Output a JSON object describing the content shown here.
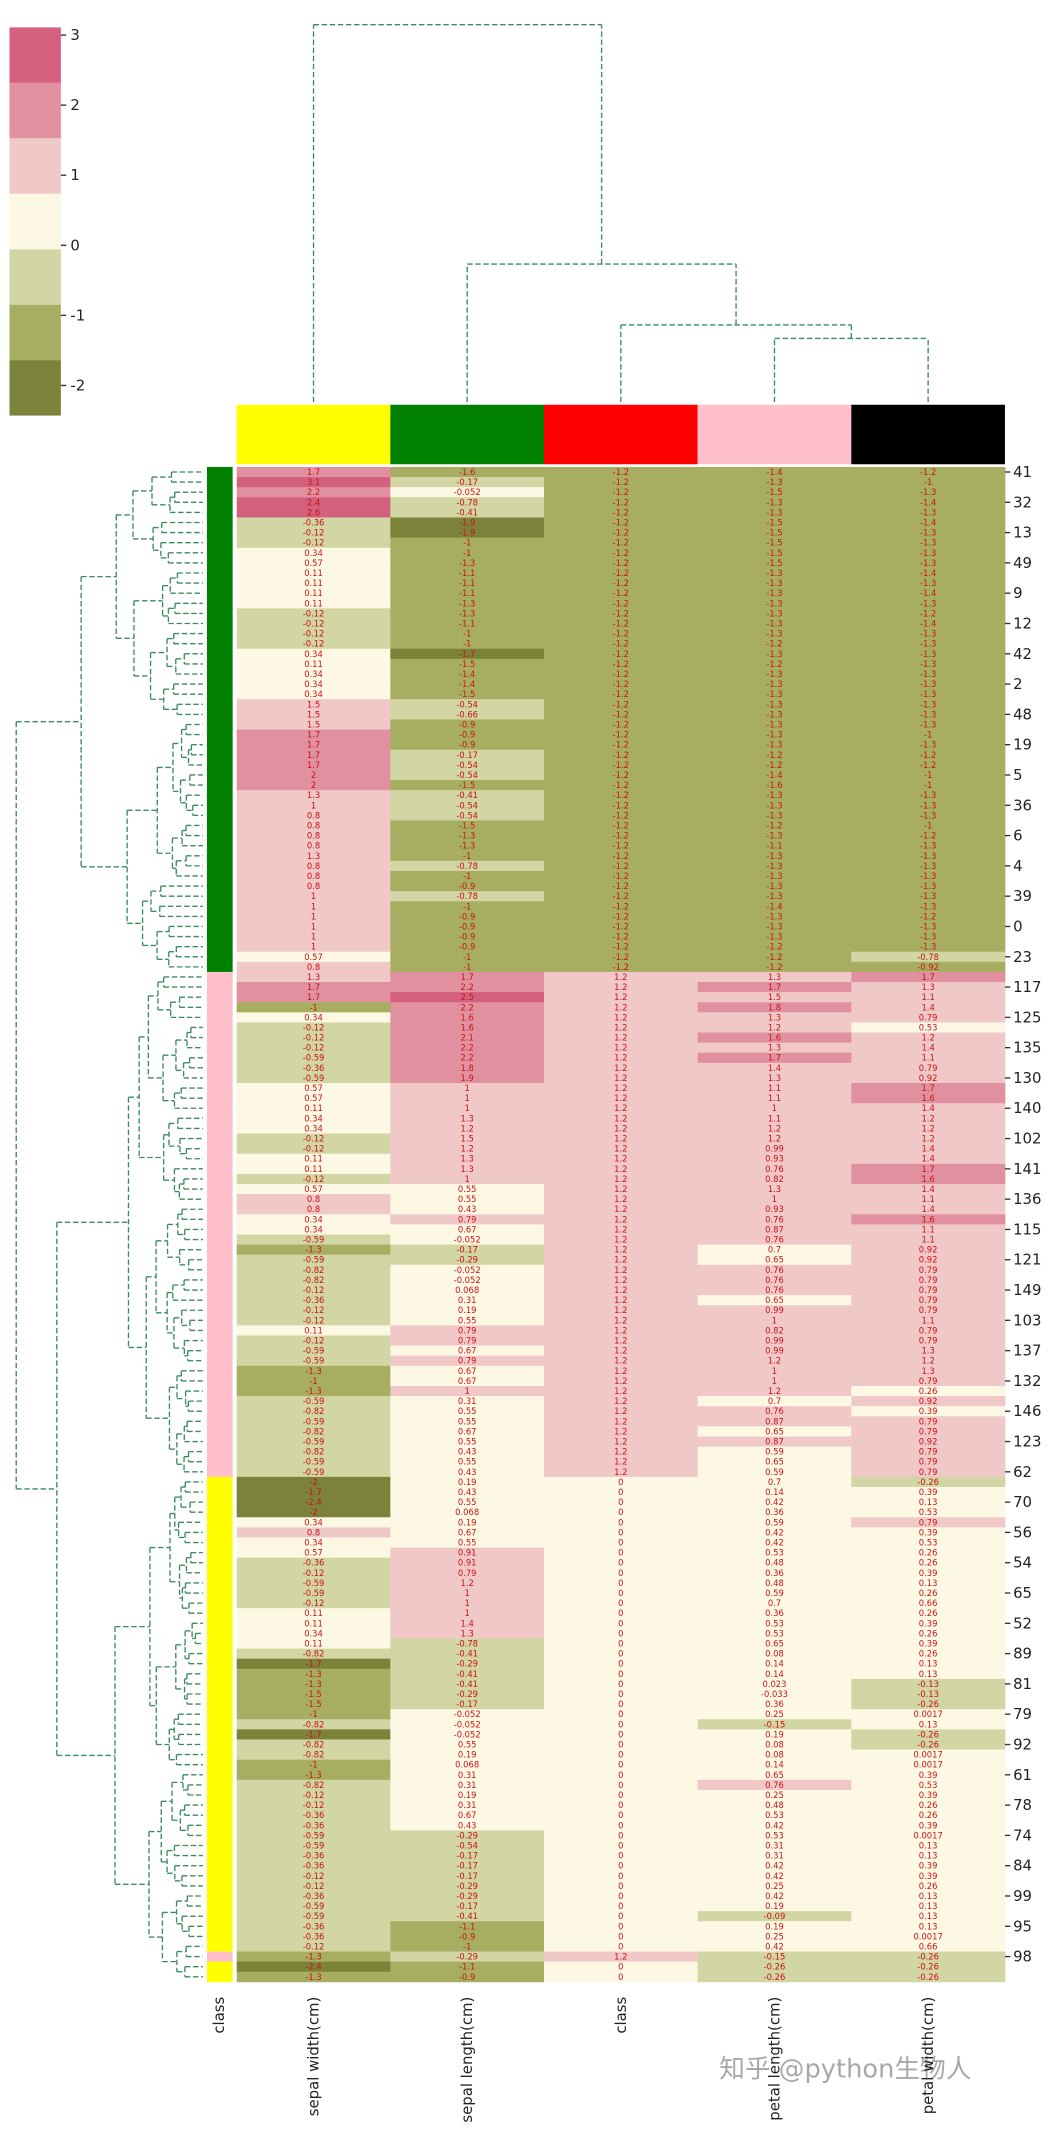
{
  "chart_data": {
    "type": "clustermap",
    "clim": [
      -2.43,
      3.11
    ],
    "colors": [
      "#7c823a",
      "#a7ae62",
      "#d1d6a4",
      "#fdf8e4",
      "#f0c8c8",
      "#e0909f",
      "#d4607f"
    ],
    "colorbar_ticks": [
      -2,
      -1,
      0,
      1,
      2,
      3
    ],
    "row_colors_label": "class",
    "row_colors": [
      {
        "value": -1.2,
        "color": "#008000"
      },
      {
        "value": 1.2,
        "color": "#ffc0cb"
      },
      {
        "value": 0,
        "color": "#ffff00"
      }
    ],
    "watermark": "知乎 @python生物人",
    "row_labels": [
      "41",
      null,
      null,
      "32",
      null,
      null,
      "13",
      null,
      null,
      "49",
      null,
      null,
      "9",
      null,
      null,
      "12",
      null,
      null,
      "42",
      null,
      null,
      "2",
      null,
      null,
      "48",
      null,
      null,
      "19",
      null,
      null,
      "5",
      null,
      null,
      "36",
      null,
      null,
      "6",
      null,
      null,
      "4",
      null,
      null,
      "39",
      null,
      null,
      "0",
      null,
      null,
      "23",
      null,
      null,
      "117",
      null,
      null,
      "125",
      null,
      null,
      "135",
      null,
      null,
      "130",
      null,
      null,
      "140",
      null,
      null,
      "102",
      null,
      null,
      "141",
      null,
      null,
      "136",
      null,
      null,
      "115",
      null,
      null,
      "121",
      null,
      null,
      "149",
      null,
      null,
      "103",
      null,
      null,
      "137",
      null,
      null,
      "132",
      null,
      null,
      "146",
      null,
      null,
      "123",
      null,
      null,
      "62",
      null,
      null,
      "70",
      null,
      null,
      "56",
      null,
      null,
      "54",
      null,
      null,
      "65",
      null,
      null,
      "52",
      null,
      null,
      "89",
      null,
      null,
      "81",
      null,
      null,
      "79",
      null,
      null,
      "92",
      null,
      null,
      "61",
      null,
      null,
      "78",
      null,
      null,
      "74",
      null,
      null,
      "84",
      null,
      null,
      "99",
      null,
      null,
      "95",
      null,
      null,
      "98",
      null,
      null
    ],
    "series": [
      {
        "name": "sepal width(cm)",
        "color": "#ffff00",
        "values": [
          1.7,
          3.1,
          2.2,
          2.4,
          2.6,
          -0.36,
          -0.12,
          -0.12,
          0.34,
          0.57,
          0.11,
          0.11,
          0.11,
          0.11,
          -0.12,
          -0.12,
          -0.12,
          -0.12,
          0.34,
          0.11,
          0.34,
          0.34,
          0.34,
          1.5,
          1.5,
          1.5,
          1.7,
          1.7,
          1.7,
          1.7,
          2,
          2,
          1.3,
          1,
          0.8,
          0.8,
          0.8,
          0.8,
          1.3,
          0.8,
          0.8,
          0.8,
          1,
          1,
          1,
          1,
          1,
          1,
          0.57,
          0.8,
          1.3,
          1.7,
          1.7,
          -1,
          0.34,
          -0.12,
          -0.12,
          -0.12,
          -0.59,
          -0.36,
          -0.59,
          0.57,
          0.57,
          0.11,
          0.34,
          0.34,
          -0.12,
          -0.12,
          0.11,
          0.11,
          -0.12,
          0.57,
          0.8,
          0.8,
          0.34,
          0.34,
          -0.59,
          -1.3,
          -0.59,
          -0.82,
          -0.82,
          -0.12,
          -0.36,
          -0.12,
          -0.12,
          0.11,
          -0.12,
          -0.59,
          -0.59,
          -1.3,
          -1,
          -1.3,
          -0.59,
          -0.82,
          -0.59,
          -0.82,
          -0.59,
          -0.82,
          -0.59,
          -0.59,
          -2,
          -1.7,
          -2.4,
          -2,
          0.34,
          0.8,
          0.34,
          0.57,
          -0.36,
          -0.12,
          -0.59,
          -0.59,
          -0.12,
          0.11,
          0.11,
          0.34,
          0.11,
          -0.82,
          -1.7,
          -1.3,
          -1.3,
          -1.5,
          -1.5,
          -1,
          -0.82,
          -1.7,
          -0.82,
          -0.82,
          -1,
          -1.3,
          -0.82,
          -0.12,
          -0.12,
          -0.36,
          -0.36,
          -0.59,
          -0.59,
          -0.36,
          -0.36,
          -0.12,
          -0.12,
          -0.36,
          -0.59,
          -0.59,
          -0.36,
          -0.36,
          -0.12,
          -1.3,
          -2.4,
          -1.3
        ]
      },
      {
        "name": "sepal length(cm)",
        "color": "#008000",
        "values": [
          -1.6,
          -0.17,
          -0.052,
          -0.78,
          -0.41,
          -1.9,
          -1.9,
          -1,
          -1,
          -1.3,
          -1.1,
          -1.1,
          -1.1,
          -1.3,
          -1.3,
          -1.1,
          -1,
          -1,
          -1.7,
          -1.5,
          -1.4,
          -1.4,
          -1.5,
          -0.54,
          -0.66,
          -0.9,
          -0.9,
          -0.9,
          -0.17,
          -0.54,
          -0.54,
          -1.5,
          -0.41,
          -0.54,
          -0.54,
          -1.5,
          -1.3,
          -1.3,
          -1,
          -0.78,
          -1,
          -0.9,
          -0.78,
          -1,
          -0.9,
          -0.9,
          -0.9,
          -0.9,
          -1,
          -1,
          1.7,
          2.2,
          2.5,
          2.2,
          1.6,
          1.6,
          2.1,
          2.2,
          2.2,
          1.8,
          1.9,
          1,
          1,
          1,
          1.3,
          1.2,
          1.5,
          1.2,
          1.3,
          1.3,
          1,
          0.55,
          0.55,
          0.43,
          0.79,
          0.67,
          -0.052,
          -0.17,
          -0.29,
          -0.052,
          -0.052,
          0.068,
          0.31,
          0.19,
          0.55,
          0.79,
          0.79,
          0.67,
          0.79,
          0.67,
          0.67,
          1,
          0.31,
          0.55,
          0.55,
          0.67,
          0.55,
          0.43,
          0.55,
          0.43,
          0.19,
          0.43,
          0.55,
          0.068,
          0.19,
          0.67,
          0.55,
          0.91,
          0.91,
          0.79,
          1.2,
          1,
          1,
          1,
          1.4,
          1.3,
          -0.78,
          -0.41,
          -0.29,
          -0.41,
          -0.41,
          -0.29,
          -0.17,
          -0.052,
          -0.052,
          -0.052,
          0.55,
          0.19,
          0.068,
          0.31,
          0.31,
          0.19,
          0.31,
          0.67,
          0.43,
          -0.29,
          -0.54,
          -0.17,
          -0.17,
          -0.17,
          -0.29,
          -0.29,
          -0.17,
          -0.41,
          -1.1,
          -0.9,
          -1,
          -0.29,
          -1.1,
          -0.9
        ]
      },
      {
        "name": "class",
        "color": "#ff0000",
        "values": [
          -1.2,
          -1.2,
          -1.2,
          -1.2,
          -1.2,
          -1.2,
          -1.2,
          -1.2,
          -1.2,
          -1.2,
          -1.2,
          -1.2,
          -1.2,
          -1.2,
          -1.2,
          -1.2,
          -1.2,
          -1.2,
          -1.2,
          -1.2,
          -1.2,
          -1.2,
          -1.2,
          -1.2,
          -1.2,
          -1.2,
          -1.2,
          -1.2,
          -1.2,
          -1.2,
          -1.2,
          -1.2,
          -1.2,
          -1.2,
          -1.2,
          -1.2,
          -1.2,
          -1.2,
          -1.2,
          -1.2,
          -1.2,
          -1.2,
          -1.2,
          -1.2,
          -1.2,
          -1.2,
          -1.2,
          -1.2,
          -1.2,
          -1.2,
          1.2,
          1.2,
          1.2,
          1.2,
          1.2,
          1.2,
          1.2,
          1.2,
          1.2,
          1.2,
          1.2,
          1.2,
          1.2,
          1.2,
          1.2,
          1.2,
          1.2,
          1.2,
          1.2,
          1.2,
          1.2,
          1.2,
          1.2,
          1.2,
          1.2,
          1.2,
          1.2,
          1.2,
          1.2,
          1.2,
          1.2,
          1.2,
          1.2,
          1.2,
          1.2,
          1.2,
          1.2,
          1.2,
          1.2,
          1.2,
          1.2,
          1.2,
          1.2,
          1.2,
          1.2,
          1.2,
          1.2,
          1.2,
          1.2,
          1.2,
          0,
          0,
          0,
          0,
          0,
          0,
          0,
          0,
          0,
          0,
          0,
          0,
          0,
          0,
          0,
          0,
          0,
          0,
          0,
          0,
          0,
          0,
          0,
          0,
          0,
          0,
          0,
          0,
          0,
          0,
          0,
          0,
          0,
          0,
          0,
          0,
          0,
          0,
          0,
          0,
          0,
          0,
          0,
          0,
          0,
          0,
          0,
          1.2,
          0,
          0
        ]
      },
      {
        "name": "petal length(cm)",
        "color": "#ffc0cb",
        "values": [
          -1.4,
          -1.3,
          -1.5,
          -1.3,
          -1.3,
          -1.5,
          -1.5,
          -1.5,
          -1.5,
          -1.5,
          -1.3,
          -1.3,
          -1.3,
          -1.3,
          -1.3,
          -1.3,
          -1.3,
          -1.2,
          -1.3,
          -1.2,
          -1.3,
          -1.3,
          -1.3,
          -1.3,
          -1.3,
          -1.3,
          -1.3,
          -1.3,
          -1.2,
          -1.2,
          -1.4,
          -1.6,
          -1.3,
          -1.3,
          -1.3,
          -1.2,
          -1.3,
          -1.1,
          -1.3,
          -1.3,
          -1.3,
          -1.3,
          -1.3,
          -1.4,
          -1.3,
          -1.3,
          -1.3,
          -1.2,
          -1.2,
          -1.2,
          1.3,
          1.7,
          1.5,
          1.8,
          1.3,
          1.2,
          1.6,
          1.3,
          1.7,
          1.4,
          1.3,
          1.1,
          1.1,
          1,
          1.1,
          1.2,
          1.2,
          0.99,
          0.93,
          0.76,
          0.82,
          1.3,
          1,
          0.93,
          0.76,
          0.87,
          0.76,
          0.7,
          0.65,
          0.76,
          0.76,
          0.76,
          0.65,
          0.99,
          1,
          0.82,
          0.99,
          0.99,
          1.2,
          1,
          1,
          1.2,
          0.7,
          0.76,
          0.87,
          0.65,
          0.87,
          0.59,
          0.65,
          0.59,
          0.7,
          0.14,
          0.42,
          0.36,
          0.59,
          0.42,
          0.42,
          0.53,
          0.48,
          0.36,
          0.48,
          0.59,
          0.7,
          0.36,
          0.53,
          0.53,
          0.65,
          0.08,
          0.14,
          0.14,
          0.023,
          -0.033,
          0.36,
          0.25,
          -0.15,
          0.19,
          0.08,
          0.08,
          0.14,
          0.65,
          0.76,
          0.25,
          0.48,
          0.53,
          0.42,
          0.53,
          0.31,
          0.31,
          0.42,
          0.42,
          0.25,
          0.42,
          0.19,
          -0.09,
          0.19,
          0.25,
          0.42,
          -0.15,
          -0.26,
          -0.26
        ]
      },
      {
        "name": "petal width(cm)",
        "color": "#000000",
        "values": [
          -1.2,
          -1,
          -1.3,
          -1.4,
          -1.3,
          -1.4,
          -1.3,
          -1.3,
          -1.3,
          -1.3,
          -1.4,
          -1.3,
          -1.4,
          -1.3,
          -1.2,
          -1.4,
          -1.3,
          -1.3,
          -1.3,
          -1.3,
          -1.3,
          -1.3,
          -1.3,
          -1.3,
          -1.3,
          -1.3,
          -1,
          -1.3,
          -1.2,
          -1.2,
          -1,
          -1,
          -1.3,
          -1.3,
          -1.3,
          -1,
          -1.2,
          -1.3,
          -1.3,
          -1.3,
          -1.3,
          -1.3,
          -1.3,
          -1.3,
          -1.2,
          -1.3,
          -1.3,
          -1.3,
          -0.78,
          -0.92,
          1.7,
          1.3,
          1.1,
          1.4,
          0.79,
          0.53,
          1.2,
          1.4,
          1.1,
          0.79,
          0.92,
          1.7,
          1.6,
          1.4,
          1.2,
          1.2,
          1.2,
          1.4,
          1.4,
          1.7,
          1.6,
          1.4,
          1.1,
          1.4,
          1.6,
          1.1,
          1.1,
          0.92,
          0.92,
          0.79,
          0.79,
          0.79,
          0.79,
          0.79,
          1.1,
          0.79,
          0.79,
          1.3,
          1.2,
          1.3,
          0.79,
          0.26,
          0.92,
          0.39,
          0.79,
          0.79,
          0.92,
          0.79,
          0.79,
          0.79,
          -0.26,
          0.39,
          0.13,
          0.53,
          0.79,
          0.39,
          0.53,
          0.26,
          0.26,
          0.39,
          0.13,
          0.26,
          0.66,
          0.26,
          0.39,
          0.26,
          0.39,
          0.26,
          0.13,
          0.13,
          -0.13,
          -0.13,
          -0.26,
          0.0017,
          0.13,
          -0.26,
          -0.26,
          0.0017,
          0.0017,
          0.39,
          0.53,
          0.39,
          0.26,
          0.26,
          0.39,
          0.0017,
          0.13,
          0.13,
          0.39,
          0.39,
          0.26,
          0.13,
          0.13,
          0.13,
          0.13,
          0.0017,
          0.66,
          -0.26,
          -0.26,
          -0.26
        ]
      }
    ]
  }
}
